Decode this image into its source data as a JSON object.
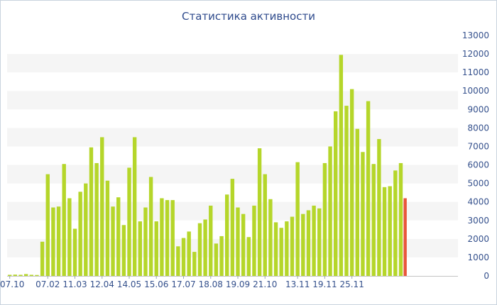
{
  "chart_data": {
    "type": "bar",
    "title": "Статистика активности",
    "xlabel": "",
    "ylabel": "",
    "ylim": [
      0,
      13000
    ],
    "y_ticks": [
      0,
      1000,
      2000,
      3000,
      4000,
      5000,
      6000,
      7000,
      8000,
      9000,
      10000,
      11000,
      12000,
      13000
    ],
    "y_axis_side": "right",
    "grid": "horizontal alternating bands",
    "x_tick_labels": [
      {
        "label": "07.10",
        "index": 0
      },
      {
        "label": "07.02",
        "index": 7
      },
      {
        "label": "11.03",
        "index": 12
      },
      {
        "label": "12.04",
        "index": 17
      },
      {
        "label": "14.05",
        "index": 22
      },
      {
        "label": "15.06",
        "index": 27
      },
      {
        "label": "17.07",
        "index": 32
      },
      {
        "label": "18.08",
        "index": 37
      },
      {
        "label": "19.09",
        "index": 42
      },
      {
        "label": "21.10",
        "index": 47
      },
      {
        "label": "13.11",
        "index": 53
      },
      {
        "label": "19.11",
        "index": 58
      },
      {
        "label": "25.11",
        "index": 63
      }
    ],
    "series": [
      {
        "color": "#b5d62a",
        "values": [
          60,
          70,
          60,
          100,
          60,
          50,
          1850,
          5500,
          3700,
          3750,
          6050,
          4200,
          2550,
          4550,
          5000,
          6950,
          6100,
          7500,
          5150,
          3750,
          4250,
          2750,
          5850,
          7500,
          2950,
          3700,
          5350,
          2950,
          4200,
          4100,
          4100,
          1600,
          2050,
          2400,
          1300,
          2850,
          3050,
          3800,
          1750,
          2150,
          4400,
          5250,
          3700,
          3350,
          2100,
          3800,
          6900,
          5500,
          4150,
          2900,
          2600,
          2950,
          3200,
          6150,
          3350,
          3550,
          3800,
          3650,
          6100,
          7000,
          8900,
          11950,
          9200,
          10100,
          7950,
          6700,
          9450,
          6050,
          7400,
          4800,
          4850,
          5700,
          6100
        ]
      },
      {
        "color": "#e8553a",
        "values": [
          4200
        ],
        "index": 73,
        "note": "partial"
      }
    ]
  }
}
